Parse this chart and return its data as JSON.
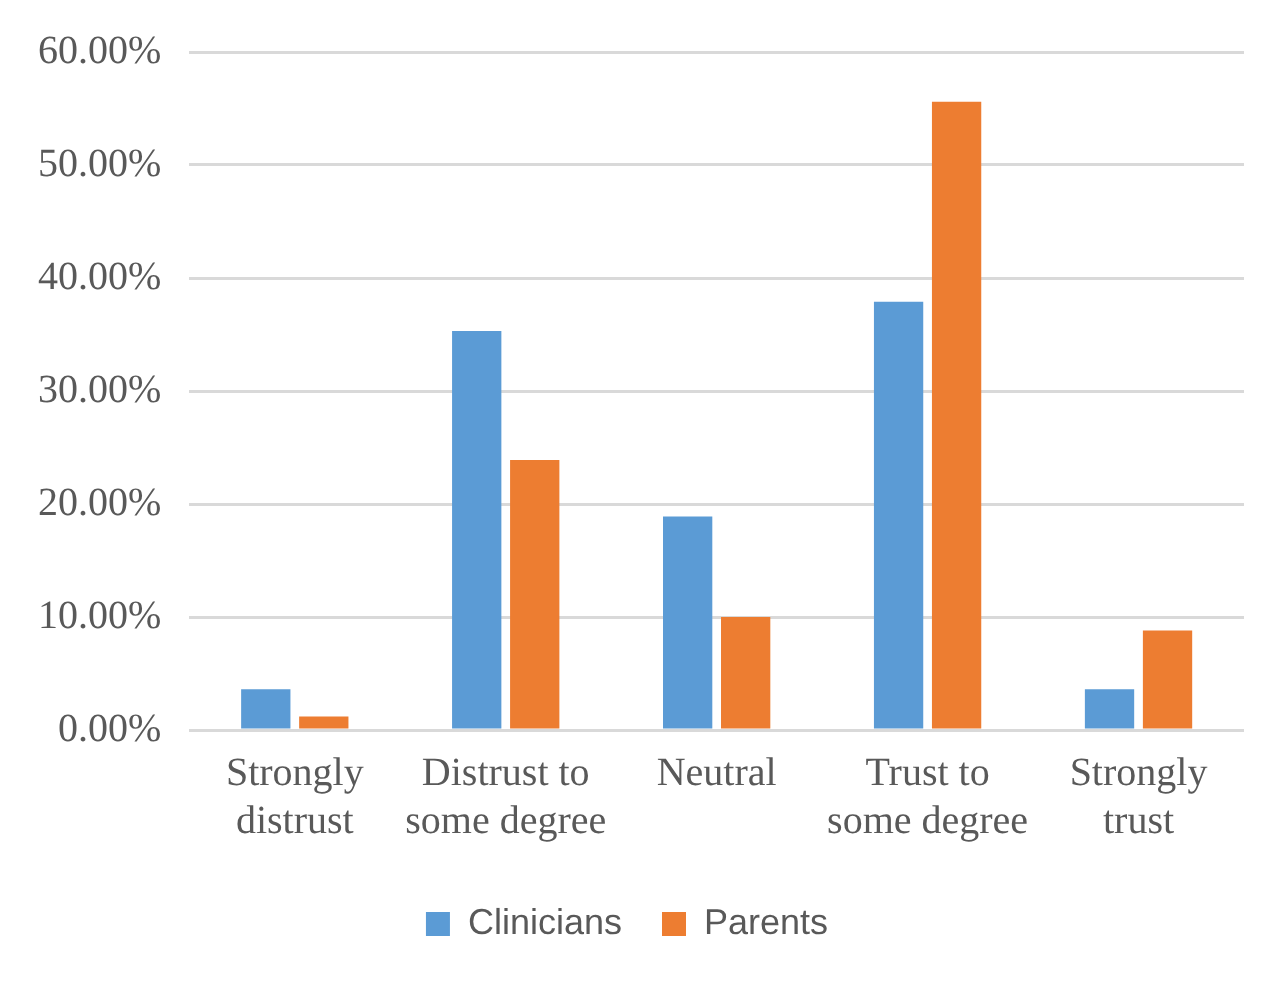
{
  "chart_data": {
    "type": "bar",
    "categories": [
      "Strongly distrust",
      "Distrust to some degree",
      "Neutral",
      "Trust to some degree",
      "Strongly trust"
    ],
    "series": [
      {
        "name": "Clinicians",
        "color": "#5b9bd5",
        "values": [
          3.6,
          35.3,
          18.9,
          37.9,
          3.6
        ]
      },
      {
        "name": "Parents",
        "color": "#ed7d31",
        "values": [
          1.2,
          23.9,
          10,
          55.6,
          8.8
        ]
      }
    ],
    "ylim": [
      0,
      60
    ],
    "yticks": [
      {
        "value": 0,
        "label": "0.00%"
      },
      {
        "value": 10,
        "label": "10.00%"
      },
      {
        "value": 20,
        "label": "20.00%"
      },
      {
        "value": 30,
        "label": "30.00%"
      },
      {
        "value": 40,
        "label": "40.00%"
      },
      {
        "value": 50,
        "label": "50.00%"
      },
      {
        "value": 60,
        "label": "60.00%"
      }
    ],
    "grid": "y",
    "legend": "bottom"
  }
}
